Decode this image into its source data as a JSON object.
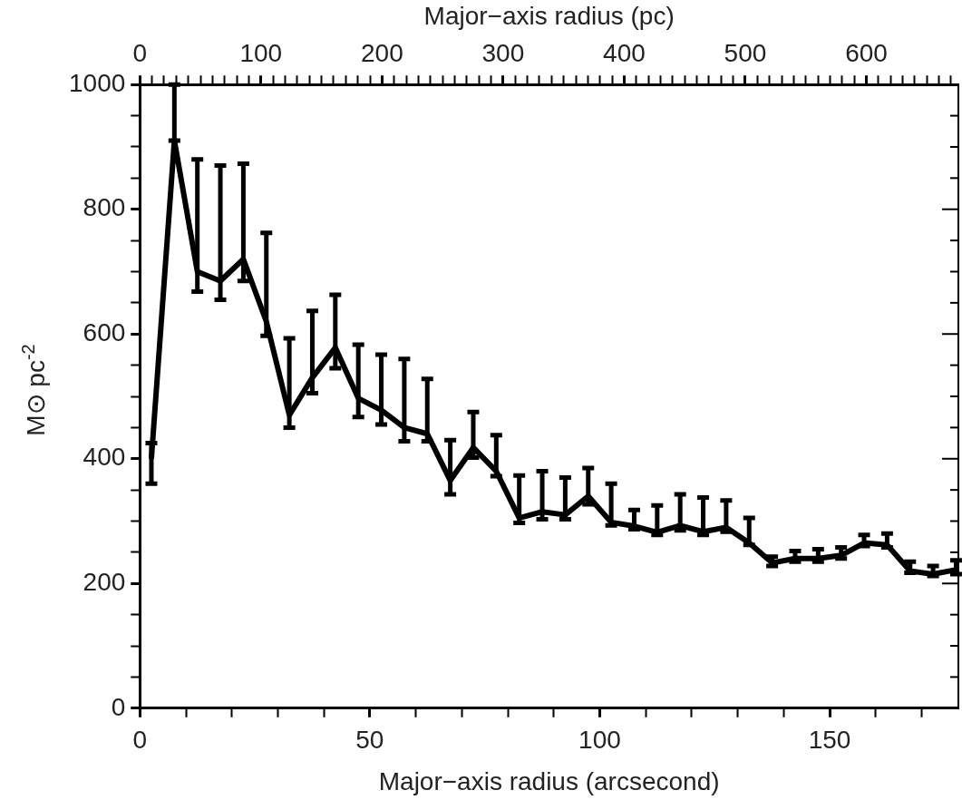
{
  "chart_data": {
    "type": "line",
    "xlabel": "Major−axis radius (arcsecond)",
    "x2label": "Major−axis radius (pc)",
    "ylabel": "M⊙ pc$^{-2}$",
    "xlim": [
      0,
      178
    ],
    "xticks": [
      0,
      {
        "value": 10,
        "label": null
      },
      {
        "value": 20,
        "label": null
      },
      {
        "value": 30,
        "label": null
      },
      {
        "value": 40,
        "label": null
      },
      50,
      {
        "value": 60,
        "label": null
      },
      {
        "value": 70,
        "label": null
      },
      {
        "value": 80,
        "label": null
      },
      {
        "value": 90,
        "label": null
      },
      100,
      {
        "value": 110,
        "label": null
      },
      {
        "value": 120,
        "label": null
      },
      {
        "value": 130,
        "label": null
      },
      {
        "value": 140,
        "label": null
      },
      150,
      {
        "value": 160,
        "label": null
      },
      {
        "value": 170,
        "label": null
      }
    ],
    "x2lim": [
      0,
      676
    ],
    "x2ticks": [
      0,
      {
        "value": 10,
        "label": null
      },
      {
        "value": 20,
        "label": null
      },
      {
        "value": 30,
        "label": null
      },
      {
        "value": 40,
        "label": null
      },
      {
        "value": 50,
        "label": null
      },
      {
        "value": 60,
        "label": null
      },
      {
        "value": 70,
        "label": null
      },
      {
        "value": 80,
        "label": null
      },
      {
        "value": 90,
        "label": null
      },
      100,
      {
        "value": 110,
        "label": null
      },
      {
        "value": 120,
        "label": null
      },
      {
        "value": 130,
        "label": null
      },
      {
        "value": 140,
        "label": null
      },
      {
        "value": 150,
        "label": null
      },
      {
        "value": 160,
        "label": null
      },
      {
        "value": 170,
        "label": null
      },
      {
        "value": 180,
        "label": null
      },
      {
        "value": 190,
        "label": null
      },
      200,
      {
        "value": 210,
        "label": null
      },
      {
        "value": 220,
        "label": null
      },
      {
        "value": 230,
        "label": null
      },
      {
        "value": 240,
        "label": null
      },
      {
        "value": 250,
        "label": null
      },
      {
        "value": 260,
        "label": null
      },
      {
        "value": 270,
        "label": null
      },
      {
        "value": 280,
        "label": null
      },
      {
        "value": 290,
        "label": null
      },
      300,
      {
        "value": 310,
        "label": null
      },
      {
        "value": 320,
        "label": null
      },
      {
        "value": 330,
        "label": null
      },
      {
        "value": 340,
        "label": null
      },
      {
        "value": 350,
        "label": null
      },
      {
        "value": 360,
        "label": null
      },
      {
        "value": 370,
        "label": null
      },
      {
        "value": 380,
        "label": null
      },
      {
        "value": 390,
        "label": null
      },
      400,
      {
        "value": 410,
        "label": null
      },
      {
        "value": 420,
        "label": null
      },
      {
        "value": 430,
        "label": null
      },
      {
        "value": 440,
        "label": null
      },
      {
        "value": 450,
        "label": null
      },
      {
        "value": 460,
        "label": null
      },
      {
        "value": 470,
        "label": null
      },
      {
        "value": 480,
        "label": null
      },
      {
        "value": 490,
        "label": null
      },
      500,
      {
        "value": 510,
        "label": null
      },
      {
        "value": 520,
        "label": null
      },
      {
        "value": 530,
        "label": null
      },
      {
        "value": 540,
        "label": null
      },
      {
        "value": 550,
        "label": null
      },
      {
        "value": 560,
        "label": null
      },
      {
        "value": 570,
        "label": null
      },
      {
        "value": 580,
        "label": null
      },
      {
        "value": 590,
        "label": null
      },
      600,
      {
        "value": 610,
        "label": null
      },
      {
        "value": 620,
        "label": null
      },
      {
        "value": 630,
        "label": null
      },
      {
        "value": 640,
        "label": null
      },
      {
        "value": 650,
        "label": null
      },
      {
        "value": 660,
        "label": null
      },
      {
        "value": 670,
        "label": null
      }
    ],
    "ylim": [
      0,
      1000
    ],
    "yticks": [
      0,
      {
        "value": 50,
        "label": null
      },
      {
        "value": 100,
        "label": null
      },
      {
        "value": 150,
        "label": null
      },
      200,
      {
        "value": 250,
        "label": null
      },
      {
        "value": 300,
        "label": null
      },
      {
        "value": 350,
        "label": null
      },
      400,
      {
        "value": 450,
        "label": null
      },
      {
        "value": 500,
        "label": null
      },
      {
        "value": 550,
        "label": null
      },
      600,
      {
        "value": 650,
        "label": null
      },
      {
        "value": 700,
        "label": null
      },
      {
        "value": 750,
        "label": null
      },
      800,
      {
        "value": 850,
        "label": null
      },
      {
        "value": 900,
        "label": null
      },
      {
        "value": 950,
        "label": null
      },
      1000
    ],
    "x": [
      2.5,
      7.5,
      12.5,
      17.5,
      22.5,
      27.5,
      32.5,
      37.5,
      42.5,
      47.5,
      52.5,
      57.5,
      62.5,
      67.5,
      72.5,
      77.5,
      82.5,
      87.5,
      92.5,
      97.5,
      102.5,
      107.5,
      112.5,
      117.5,
      122.5,
      127.5,
      132.5,
      137.5,
      142.5,
      147.5,
      152.5,
      157.5,
      162.5,
      167.5,
      172.5,
      177.5
    ],
    "series": [
      {
        "color": "#000000",
        "values": [
          400,
          910,
          700,
          685,
          720,
          620,
          470,
          530,
          578,
          497,
          478,
          450,
          440,
          365,
          418,
          380,
          305,
          315,
          310,
          340,
          298,
          292,
          282,
          293,
          283,
          290,
          265,
          233,
          240,
          240,
          245,
          265,
          262,
          220,
          215,
          222
        ],
        "errors": [
          [
            360,
            425
          ],
          [
            910,
            1000
          ],
          [
            668,
            880
          ],
          [
            655,
            870
          ],
          [
            685,
            873
          ],
          [
            597,
            762
          ],
          [
            450,
            593
          ],
          [
            505,
            637
          ],
          [
            545,
            663
          ],
          [
            467,
            583
          ],
          [
            455,
            567
          ],
          [
            428,
            560
          ],
          [
            428,
            528
          ],
          [
            343,
            430
          ],
          [
            402,
            475
          ],
          [
            372,
            438
          ],
          [
            297,
            373
          ],
          [
            303,
            380
          ],
          [
            303,
            370
          ],
          [
            327,
            385
          ],
          [
            293,
            360
          ],
          [
            287,
            318
          ],
          [
            278,
            325
          ],
          [
            285,
            343
          ],
          [
            278,
            338
          ],
          [
            283,
            333
          ],
          [
            262,
            305
          ],
          [
            228,
            243
          ],
          [
            235,
            252
          ],
          [
            235,
            255
          ],
          [
            240,
            258
          ],
          [
            260,
            278
          ],
          [
            258,
            280
          ],
          [
            217,
            235
          ],
          [
            212,
            228
          ],
          [
            215,
            237
          ]
        ]
      }
    ]
  }
}
